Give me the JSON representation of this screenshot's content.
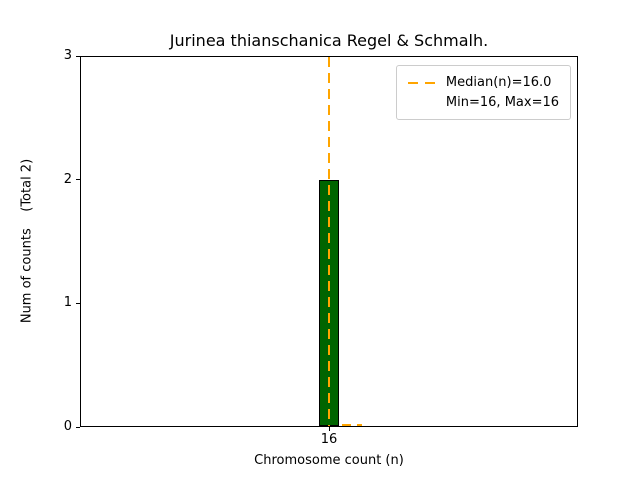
{
  "chart_data": {
    "type": "bar",
    "title": "Jurinea thianschanica Regel & Schmalh.",
    "xlabel": "Chromosome count (n)",
    "ylabel": "Num of counts",
    "ylabel_annotation": "(Total 2)",
    "ylabel_display": "Num of counts    (Total 2)",
    "categories": [
      "16"
    ],
    "values": [
      2
    ],
    "ylim": [
      0,
      3
    ],
    "yticks": [
      0,
      1,
      2,
      3
    ],
    "xticks": [
      "16"
    ],
    "grid": false,
    "bar_color": "#006400",
    "bar_edge_color": "#000000",
    "median_value": 16.0,
    "median_line_color": "#ffa500",
    "min_value": 16,
    "max_value": 16,
    "legend": {
      "position": "top-right",
      "entries": [
        {
          "sample": "dashed-line",
          "label": "Median(n)=16.0"
        },
        {
          "sample": "none",
          "label": "Min=16, Max=16"
        }
      ]
    }
  }
}
